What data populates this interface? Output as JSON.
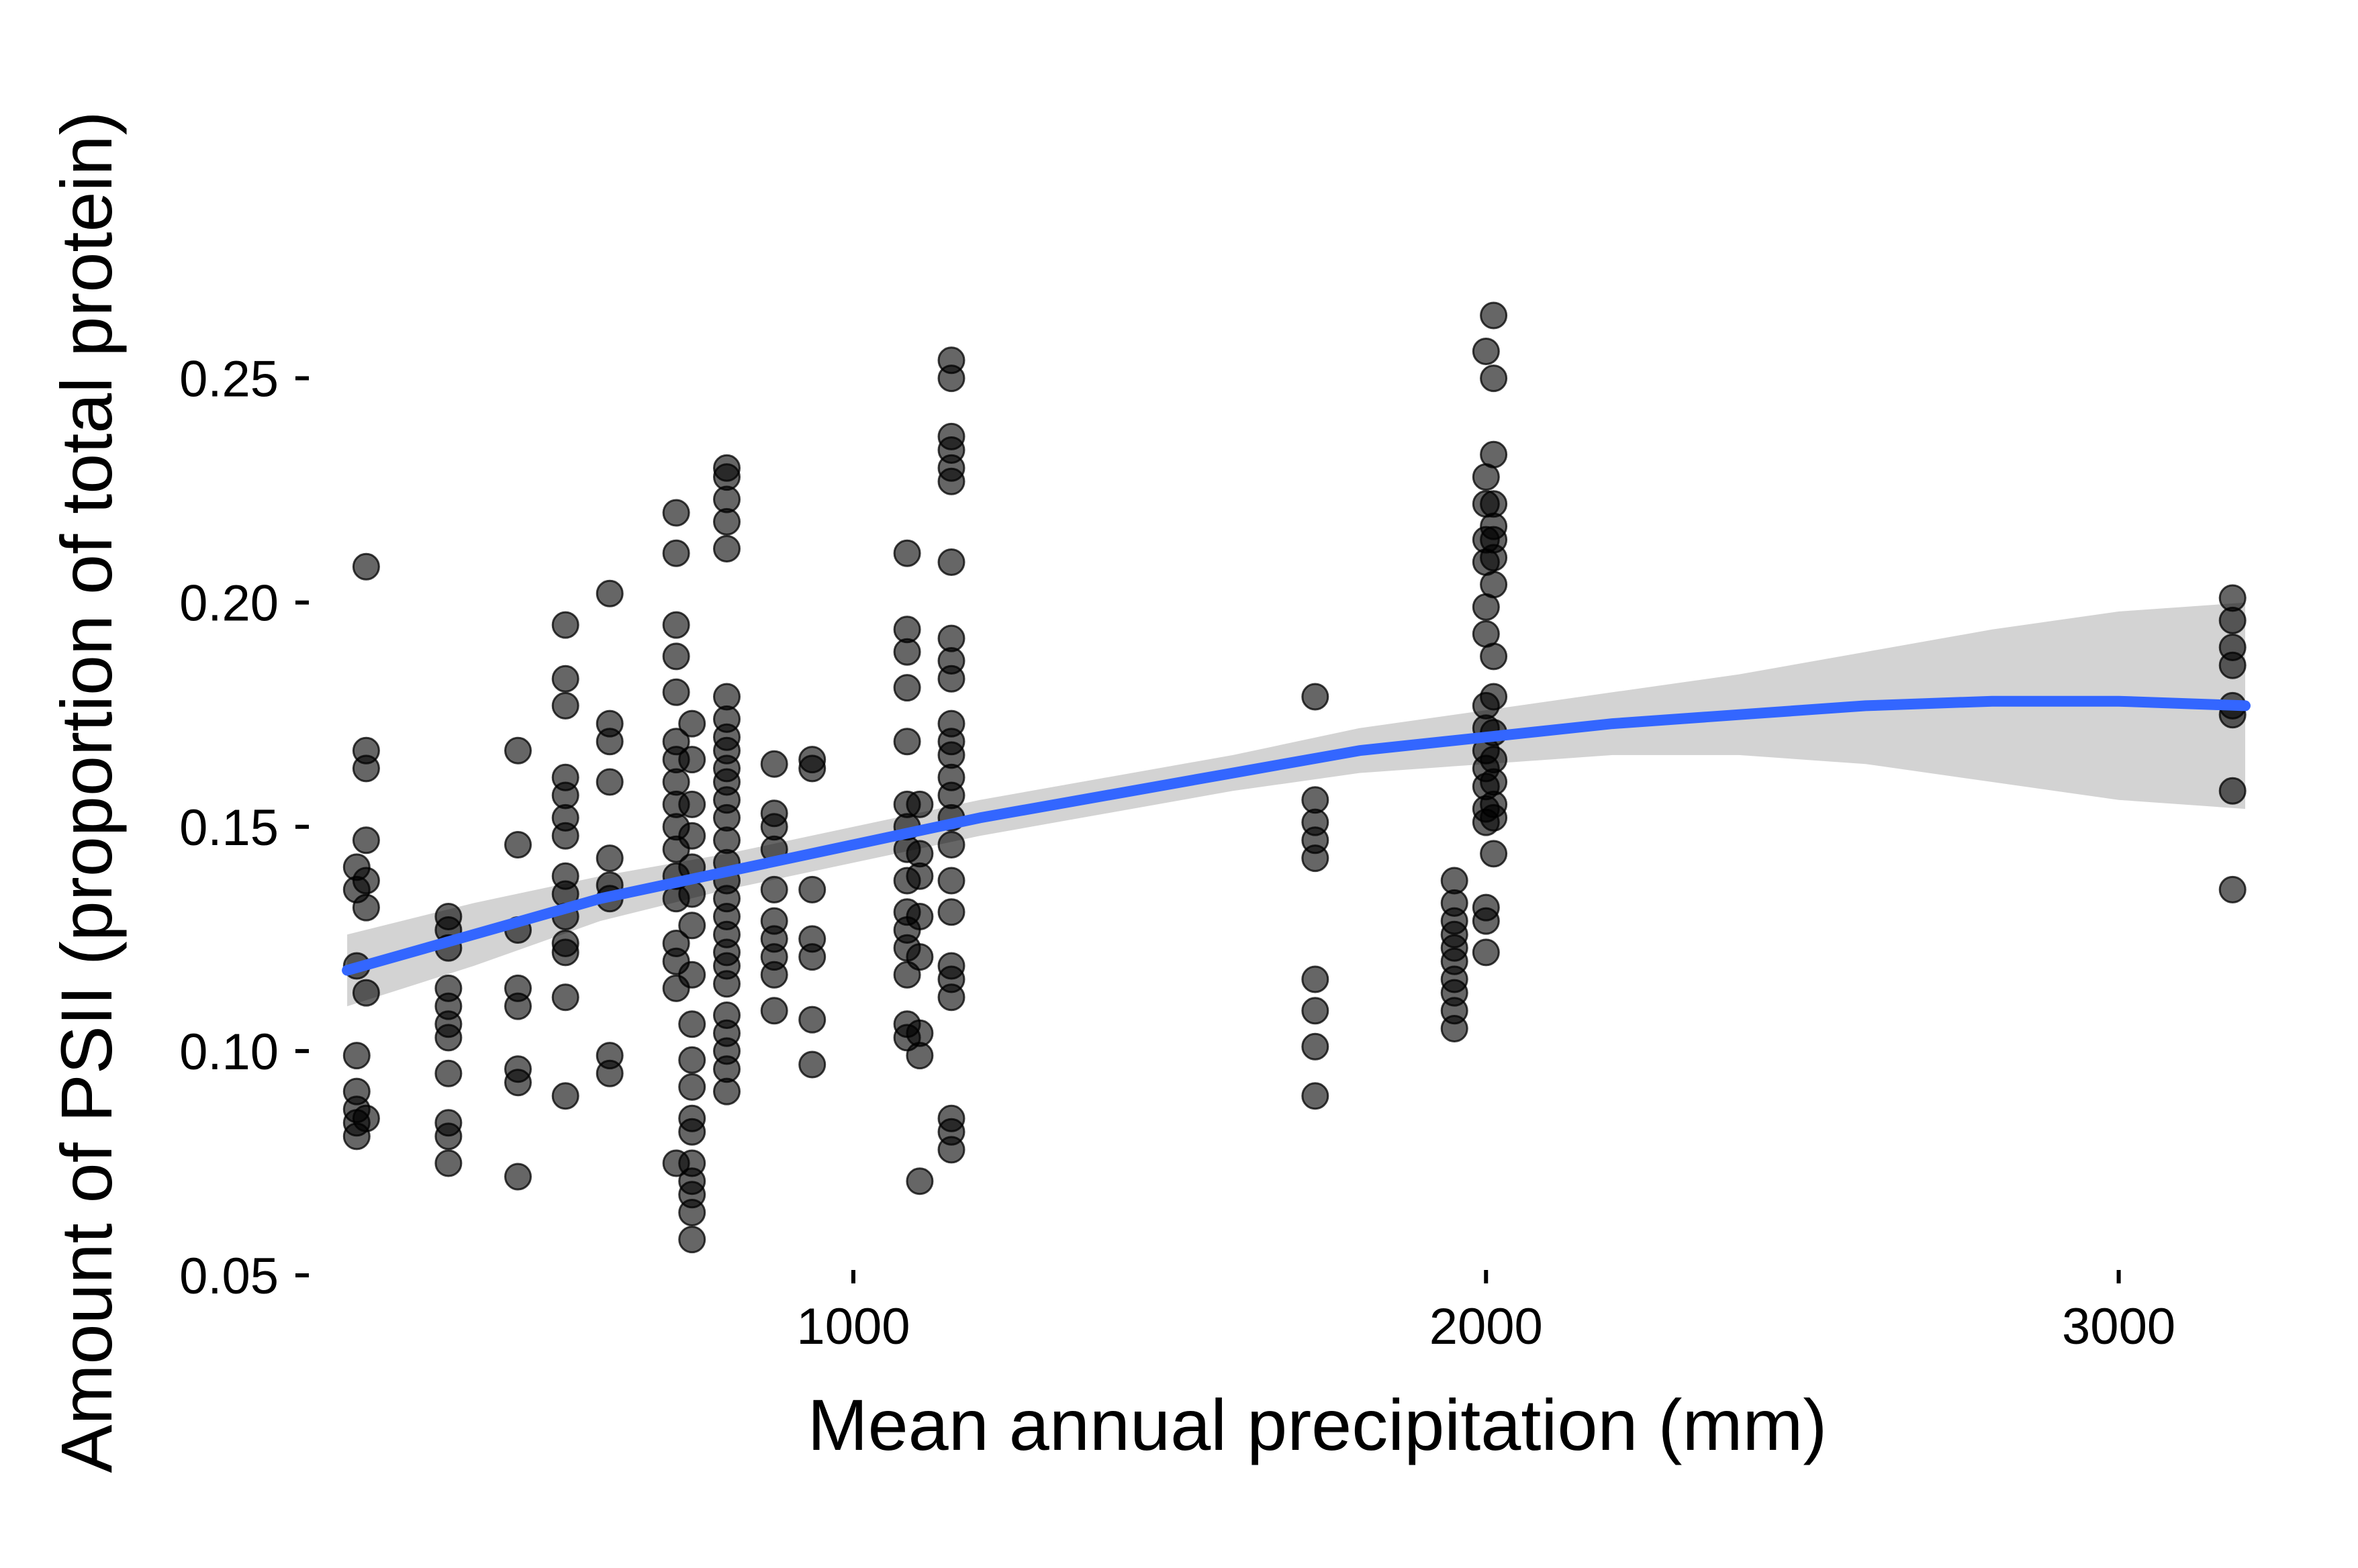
{
  "chart_data": {
    "type": "scatter",
    "title": "",
    "xlabel": "Mean annual precipitation (mm)",
    "ylabel": "Amount of PSII (proportion of total protein)",
    "xlim": [
      150,
      3270
    ],
    "ylim": [
      0.053,
      0.264
    ],
    "x_ticks": [
      1000,
      2000,
      3000
    ],
    "x_tick_labels": [
      "1000",
      "2000",
      "3000"
    ],
    "y_ticks": [
      0.05,
      0.1,
      0.15,
      0.2,
      0.25
    ],
    "y_tick_labels": [
      "0.05",
      "0.10",
      "0.15",
      "0.20",
      "0.25"
    ],
    "grid": false,
    "legend": "none",
    "colors": {
      "points": "#000000",
      "fit_line": "#3366FF",
      "ribbon": "#D3D3D3"
    },
    "points": [
      {
        "x": 215,
        "y": 0.141
      },
      {
        "x": 215,
        "y": 0.136
      },
      {
        "x": 215,
        "y": 0.119
      },
      {
        "x": 215,
        "y": 0.099
      },
      {
        "x": 215,
        "y": 0.091
      },
      {
        "x": 215,
        "y": 0.087
      },
      {
        "x": 215,
        "y": 0.084
      },
      {
        "x": 215,
        "y": 0.081
      },
      {
        "x": 230,
        "y": 0.208
      },
      {
        "x": 230,
        "y": 0.167
      },
      {
        "x": 230,
        "y": 0.163
      },
      {
        "x": 230,
        "y": 0.147
      },
      {
        "x": 230,
        "y": 0.138
      },
      {
        "x": 230,
        "y": 0.132
      },
      {
        "x": 230,
        "y": 0.113
      },
      {
        "x": 230,
        "y": 0.085
      },
      {
        "x": 360,
        "y": 0.13
      },
      {
        "x": 360,
        "y": 0.127
      },
      {
        "x": 360,
        "y": 0.123
      },
      {
        "x": 360,
        "y": 0.114
      },
      {
        "x": 360,
        "y": 0.11
      },
      {
        "x": 360,
        "y": 0.106
      },
      {
        "x": 360,
        "y": 0.103
      },
      {
        "x": 360,
        "y": 0.095
      },
      {
        "x": 360,
        "y": 0.084
      },
      {
        "x": 360,
        "y": 0.081
      },
      {
        "x": 360,
        "y": 0.075
      },
      {
        "x": 470,
        "y": 0.167
      },
      {
        "x": 470,
        "y": 0.146
      },
      {
        "x": 470,
        "y": 0.127
      },
      {
        "x": 470,
        "y": 0.114
      },
      {
        "x": 470,
        "y": 0.11
      },
      {
        "x": 470,
        "y": 0.096
      },
      {
        "x": 470,
        "y": 0.093
      },
      {
        "x": 470,
        "y": 0.072
      },
      {
        "x": 545,
        "y": 0.195
      },
      {
        "x": 545,
        "y": 0.183
      },
      {
        "x": 545,
        "y": 0.177
      },
      {
        "x": 545,
        "y": 0.161
      },
      {
        "x": 545,
        "y": 0.157
      },
      {
        "x": 545,
        "y": 0.152
      },
      {
        "x": 545,
        "y": 0.148
      },
      {
        "x": 545,
        "y": 0.139
      },
      {
        "x": 545,
        "y": 0.135
      },
      {
        "x": 545,
        "y": 0.13
      },
      {
        "x": 545,
        "y": 0.124
      },
      {
        "x": 545,
        "y": 0.122
      },
      {
        "x": 545,
        "y": 0.112
      },
      {
        "x": 545,
        "y": 0.09
      },
      {
        "x": 615,
        "y": 0.202
      },
      {
        "x": 615,
        "y": 0.173
      },
      {
        "x": 615,
        "y": 0.169
      },
      {
        "x": 615,
        "y": 0.16
      },
      {
        "x": 615,
        "y": 0.143
      },
      {
        "x": 615,
        "y": 0.137
      },
      {
        "x": 615,
        "y": 0.134
      },
      {
        "x": 615,
        "y": 0.099
      },
      {
        "x": 615,
        "y": 0.095
      },
      {
        "x": 720,
        "y": 0.22
      },
      {
        "x": 720,
        "y": 0.211
      },
      {
        "x": 720,
        "y": 0.195
      },
      {
        "x": 720,
        "y": 0.188
      },
      {
        "x": 720,
        "y": 0.18
      },
      {
        "x": 720,
        "y": 0.169
      },
      {
        "x": 720,
        "y": 0.165
      },
      {
        "x": 720,
        "y": 0.16
      },
      {
        "x": 720,
        "y": 0.155
      },
      {
        "x": 720,
        "y": 0.15
      },
      {
        "x": 720,
        "y": 0.145
      },
      {
        "x": 720,
        "y": 0.139
      },
      {
        "x": 720,
        "y": 0.134
      },
      {
        "x": 720,
        "y": 0.124
      },
      {
        "x": 720,
        "y": 0.12
      },
      {
        "x": 720,
        "y": 0.114
      },
      {
        "x": 720,
        "y": 0.075
      },
      {
        "x": 745,
        "y": 0.173
      },
      {
        "x": 745,
        "y": 0.165
      },
      {
        "x": 745,
        "y": 0.155
      },
      {
        "x": 745,
        "y": 0.148
      },
      {
        "x": 745,
        "y": 0.141
      },
      {
        "x": 745,
        "y": 0.135
      },
      {
        "x": 745,
        "y": 0.128
      },
      {
        "x": 745,
        "y": 0.117
      },
      {
        "x": 745,
        "y": 0.106
      },
      {
        "x": 745,
        "y": 0.098
      },
      {
        "x": 745,
        "y": 0.092
      },
      {
        "x": 745,
        "y": 0.085
      },
      {
        "x": 745,
        "y": 0.082
      },
      {
        "x": 745,
        "y": 0.075
      },
      {
        "x": 745,
        "y": 0.071
      },
      {
        "x": 745,
        "y": 0.068
      },
      {
        "x": 745,
        "y": 0.064
      },
      {
        "x": 745,
        "y": 0.058
      },
      {
        "x": 800,
        "y": 0.23
      },
      {
        "x": 800,
        "y": 0.228
      },
      {
        "x": 800,
        "y": 0.223
      },
      {
        "x": 800,
        "y": 0.218
      },
      {
        "x": 800,
        "y": 0.212
      },
      {
        "x": 800,
        "y": 0.179
      },
      {
        "x": 800,
        "y": 0.174
      },
      {
        "x": 800,
        "y": 0.17
      },
      {
        "x": 800,
        "y": 0.167
      },
      {
        "x": 800,
        "y": 0.163
      },
      {
        "x": 800,
        "y": 0.16
      },
      {
        "x": 800,
        "y": 0.156
      },
      {
        "x": 800,
        "y": 0.152
      },
      {
        "x": 800,
        "y": 0.147
      },
      {
        "x": 800,
        "y": 0.142
      },
      {
        "x": 800,
        "y": 0.138
      },
      {
        "x": 800,
        "y": 0.134
      },
      {
        "x": 800,
        "y": 0.13
      },
      {
        "x": 800,
        "y": 0.126
      },
      {
        "x": 800,
        "y": 0.122
      },
      {
        "x": 800,
        "y": 0.119
      },
      {
        "x": 800,
        "y": 0.115
      },
      {
        "x": 800,
        "y": 0.108
      },
      {
        "x": 800,
        "y": 0.104
      },
      {
        "x": 800,
        "y": 0.1
      },
      {
        "x": 800,
        "y": 0.096
      },
      {
        "x": 800,
        "y": 0.091
      },
      {
        "x": 875,
        "y": 0.164
      },
      {
        "x": 875,
        "y": 0.153
      },
      {
        "x": 875,
        "y": 0.15
      },
      {
        "x": 875,
        "y": 0.145
      },
      {
        "x": 875,
        "y": 0.136
      },
      {
        "x": 875,
        "y": 0.129
      },
      {
        "x": 875,
        "y": 0.125
      },
      {
        "x": 875,
        "y": 0.121
      },
      {
        "x": 875,
        "y": 0.117
      },
      {
        "x": 875,
        "y": 0.109
      },
      {
        "x": 935,
        "y": 0.165
      },
      {
        "x": 935,
        "y": 0.163
      },
      {
        "x": 935,
        "y": 0.136
      },
      {
        "x": 935,
        "y": 0.125
      },
      {
        "x": 935,
        "y": 0.121
      },
      {
        "x": 935,
        "y": 0.107
      },
      {
        "x": 935,
        "y": 0.097
      },
      {
        "x": 1085,
        "y": 0.211
      },
      {
        "x": 1085,
        "y": 0.194
      },
      {
        "x": 1085,
        "y": 0.189
      },
      {
        "x": 1085,
        "y": 0.181
      },
      {
        "x": 1085,
        "y": 0.169
      },
      {
        "x": 1085,
        "y": 0.155
      },
      {
        "x": 1085,
        "y": 0.15
      },
      {
        "x": 1085,
        "y": 0.145
      },
      {
        "x": 1085,
        "y": 0.138
      },
      {
        "x": 1085,
        "y": 0.131
      },
      {
        "x": 1085,
        "y": 0.127
      },
      {
        "x": 1085,
        "y": 0.123
      },
      {
        "x": 1085,
        "y": 0.117
      },
      {
        "x": 1085,
        "y": 0.106
      },
      {
        "x": 1085,
        "y": 0.103
      },
      {
        "x": 1105,
        "y": 0.155
      },
      {
        "x": 1105,
        "y": 0.144
      },
      {
        "x": 1105,
        "y": 0.139
      },
      {
        "x": 1105,
        "y": 0.13
      },
      {
        "x": 1105,
        "y": 0.121
      },
      {
        "x": 1105,
        "y": 0.104
      },
      {
        "x": 1105,
        "y": 0.099
      },
      {
        "x": 1105,
        "y": 0.071
      },
      {
        "x": 1155,
        "y": 0.254
      },
      {
        "x": 1155,
        "y": 0.25
      },
      {
        "x": 1155,
        "y": 0.237
      },
      {
        "x": 1155,
        "y": 0.234
      },
      {
        "x": 1155,
        "y": 0.23
      },
      {
        "x": 1155,
        "y": 0.227
      },
      {
        "x": 1155,
        "y": 0.209
      },
      {
        "x": 1155,
        "y": 0.192
      },
      {
        "x": 1155,
        "y": 0.187
      },
      {
        "x": 1155,
        "y": 0.183
      },
      {
        "x": 1155,
        "y": 0.173
      },
      {
        "x": 1155,
        "y": 0.169
      },
      {
        "x": 1155,
        "y": 0.166
      },
      {
        "x": 1155,
        "y": 0.161
      },
      {
        "x": 1155,
        "y": 0.157
      },
      {
        "x": 1155,
        "y": 0.152
      },
      {
        "x": 1155,
        "y": 0.146
      },
      {
        "x": 1155,
        "y": 0.138
      },
      {
        "x": 1155,
        "y": 0.131
      },
      {
        "x": 1155,
        "y": 0.119
      },
      {
        "x": 1155,
        "y": 0.116
      },
      {
        "x": 1155,
        "y": 0.112
      },
      {
        "x": 1155,
        "y": 0.085
      },
      {
        "x": 1155,
        "y": 0.082
      },
      {
        "x": 1155,
        "y": 0.078
      },
      {
        "x": 1730,
        "y": 0.179
      },
      {
        "x": 1730,
        "y": 0.156
      },
      {
        "x": 1730,
        "y": 0.151
      },
      {
        "x": 1730,
        "y": 0.147
      },
      {
        "x": 1730,
        "y": 0.143
      },
      {
        "x": 1730,
        "y": 0.116
      },
      {
        "x": 1730,
        "y": 0.109
      },
      {
        "x": 1730,
        "y": 0.101
      },
      {
        "x": 1730,
        "y": 0.09
      },
      {
        "x": 1950,
        "y": 0.138
      },
      {
        "x": 1950,
        "y": 0.133
      },
      {
        "x": 1950,
        "y": 0.129
      },
      {
        "x": 1950,
        "y": 0.126
      },
      {
        "x": 1950,
        "y": 0.123
      },
      {
        "x": 1950,
        "y": 0.12
      },
      {
        "x": 1950,
        "y": 0.116
      },
      {
        "x": 1950,
        "y": 0.113
      },
      {
        "x": 1950,
        "y": 0.109
      },
      {
        "x": 1950,
        "y": 0.105
      },
      {
        "x": 2000,
        "y": 0.256
      },
      {
        "x": 2000,
        "y": 0.228
      },
      {
        "x": 2000,
        "y": 0.222
      },
      {
        "x": 2000,
        "y": 0.214
      },
      {
        "x": 2000,
        "y": 0.209
      },
      {
        "x": 2000,
        "y": 0.199
      },
      {
        "x": 2000,
        "y": 0.193
      },
      {
        "x": 2000,
        "y": 0.177
      },
      {
        "x": 2000,
        "y": 0.172
      },
      {
        "x": 2000,
        "y": 0.167
      },
      {
        "x": 2000,
        "y": 0.163
      },
      {
        "x": 2000,
        "y": 0.159
      },
      {
        "x": 2000,
        "y": 0.154
      },
      {
        "x": 2000,
        "y": 0.151
      },
      {
        "x": 2000,
        "y": 0.132
      },
      {
        "x": 2000,
        "y": 0.129
      },
      {
        "x": 2000,
        "y": 0.122
      },
      {
        "x": 2012,
        "y": 0.264
      },
      {
        "x": 2012,
        "y": 0.25
      },
      {
        "x": 2012,
        "y": 0.233
      },
      {
        "x": 2012,
        "y": 0.222
      },
      {
        "x": 2012,
        "y": 0.217
      },
      {
        "x": 2012,
        "y": 0.214
      },
      {
        "x": 2012,
        "y": 0.21
      },
      {
        "x": 2012,
        "y": 0.204
      },
      {
        "x": 2012,
        "y": 0.188
      },
      {
        "x": 2012,
        "y": 0.179
      },
      {
        "x": 2012,
        "y": 0.171
      },
      {
        "x": 2012,
        "y": 0.165
      },
      {
        "x": 2012,
        "y": 0.16
      },
      {
        "x": 2012,
        "y": 0.155
      },
      {
        "x": 2012,
        "y": 0.152
      },
      {
        "x": 2012,
        "y": 0.144
      },
      {
        "x": 3180,
        "y": 0.201
      },
      {
        "x": 3180,
        "y": 0.196
      },
      {
        "x": 3180,
        "y": 0.19
      },
      {
        "x": 3180,
        "y": 0.186
      },
      {
        "x": 3180,
        "y": 0.177
      },
      {
        "x": 3180,
        "y": 0.175
      },
      {
        "x": 3180,
        "y": 0.158
      },
      {
        "x": 3180,
        "y": 0.136
      }
    ],
    "fit": {
      "x": [
        200,
        400,
        600,
        800,
        1000,
        1200,
        1400,
        1600,
        1800,
        2000,
        2200,
        2400,
        2600,
        2800,
        3000,
        3200
      ],
      "y": [
        0.118,
        0.126,
        0.134,
        0.14,
        0.146,
        0.152,
        0.157,
        0.162,
        0.167,
        0.17,
        0.173,
        0.175,
        0.177,
        0.178,
        0.178,
        0.177
      ],
      "lower": [
        0.11,
        0.119,
        0.129,
        0.136,
        0.142,
        0.148,
        0.153,
        0.158,
        0.162,
        0.164,
        0.166,
        0.166,
        0.164,
        0.16,
        0.156,
        0.154
      ],
      "upper": [
        0.126,
        0.133,
        0.139,
        0.144,
        0.15,
        0.156,
        0.161,
        0.166,
        0.172,
        0.176,
        0.18,
        0.184,
        0.189,
        0.194,
        0.198,
        0.2
      ]
    }
  }
}
